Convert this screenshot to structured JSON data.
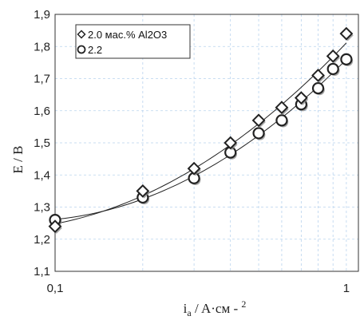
{
  "chart_data": {
    "type": "scatter",
    "xscale": "log",
    "xlim": [
      0.1,
      1.1
    ],
    "ylim": [
      1.1,
      1.9
    ],
    "xticks": [
      0.1,
      1
    ],
    "xtick_labels": [
      "0,1",
      "1"
    ],
    "yticks": [
      1.1,
      1.2,
      1.3,
      1.4,
      1.5,
      1.6,
      1.7,
      1.8,
      1.9
    ],
    "ytick_labels": [
      "1,1",
      "1,2",
      "1,3",
      "1,4",
      "1,5",
      "1,6",
      "1,7",
      "1,8",
      "1,9"
    ],
    "ylabel": "E / B",
    "xlabel": {
      "main": "i",
      "sub": "a",
      "rest": " / A·см - ",
      "sup": "2"
    },
    "grid": true,
    "legend_position": "top-left",
    "series": [
      {
        "name": "2.0 мас.% Al2O3",
        "marker": "diamond",
        "color": "#222222",
        "x": [
          0.1,
          0.2,
          0.3,
          0.4,
          0.5,
          0.6,
          0.7,
          0.8,
          0.9,
          1.0
        ],
        "y": [
          1.24,
          1.35,
          1.42,
          1.5,
          1.57,
          1.61,
          1.64,
          1.71,
          1.77,
          1.84
        ]
      },
      {
        "name": "2.2",
        "marker": "circle",
        "color": "#222222",
        "x": [
          0.1,
          0.2,
          0.3,
          0.4,
          0.5,
          0.6,
          0.7,
          0.8,
          0.9,
          1.0
        ],
        "y": [
          1.26,
          1.33,
          1.39,
          1.47,
          1.53,
          1.57,
          1.62,
          1.67,
          1.73,
          1.76
        ]
      }
    ]
  }
}
